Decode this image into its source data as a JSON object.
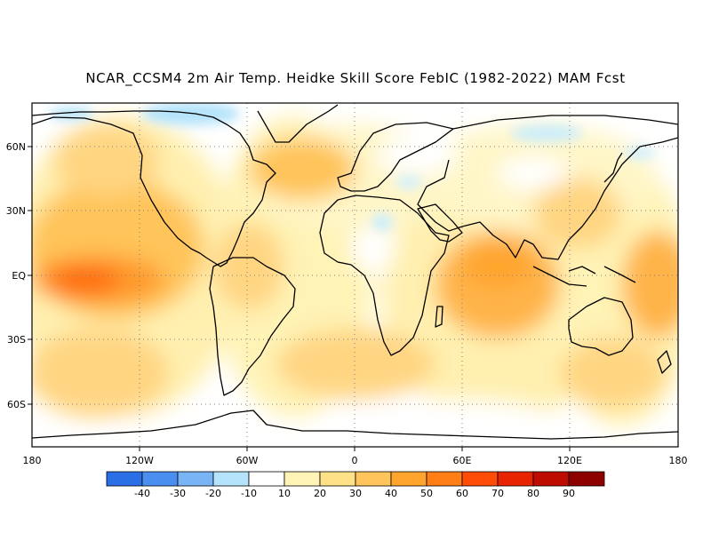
{
  "title": "NCAR_CCSM4 2m Air Temp. Heidke Skill Score FebIC (1982-2022) MAM Fcst",
  "map": {
    "projection": "latitude-longitude",
    "lat_labels": [
      "60N",
      "30N",
      "EQ",
      "30S",
      "60S"
    ],
    "lon_labels": [
      "180",
      "120W",
      "60W",
      "0",
      "60E",
      "120E",
      "180"
    ],
    "grid": "dotted",
    "coastlines": true
  },
  "colorbar": {
    "tick_labels": [
      "-40",
      "-30",
      "-20",
      "-10",
      "10",
      "20",
      "30",
      "40",
      "50",
      "60",
      "70",
      "80",
      "90"
    ],
    "colors": [
      "#2b6fe6",
      "#4a8ff0",
      "#79b4f5",
      "#b4e3fb",
      "#ffffff",
      "#fff3b6",
      "#ffe187",
      "#ffc45a",
      "#ffa52e",
      "#ff7e16",
      "#ff4c06",
      "#e82400",
      "#bf0c00",
      "#8c0000"
    ]
  }
}
